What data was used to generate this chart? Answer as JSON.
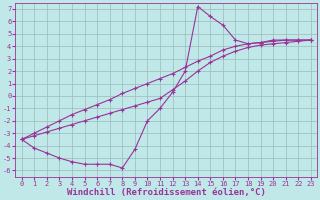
{
  "xlabel": "Windchill (Refroidissement éolien,°C)",
  "xlim": [
    -0.5,
    23.5
  ],
  "ylim": [
    -6.5,
    7.5
  ],
  "xticks": [
    0,
    1,
    2,
    3,
    4,
    5,
    6,
    7,
    8,
    9,
    10,
    11,
    12,
    13,
    14,
    15,
    16,
    17,
    18,
    19,
    20,
    21,
    22,
    23
  ],
  "yticks": [
    -6,
    -5,
    -4,
    -3,
    -2,
    -1,
    0,
    1,
    2,
    3,
    4,
    5,
    6,
    7
  ],
  "background_color": "#c0e8e8",
  "line_color": "#993399",
  "grid_color": "#99bbbb",
  "line1_x": [
    0,
    1,
    2,
    3,
    4,
    5,
    6,
    7,
    8,
    9,
    10,
    11,
    12,
    13,
    14,
    15,
    16,
    17,
    18,
    19,
    20,
    21,
    22,
    23
  ],
  "line1_y": [
    -3.5,
    -4.2,
    -4.6,
    -5.0,
    -5.3,
    -5.5,
    -5.5,
    -5.5,
    -5.8,
    -4.3,
    -2.0,
    -1.0,
    0.3,
    2.0,
    7.2,
    6.4,
    5.7,
    4.5,
    4.2,
    4.3,
    4.5,
    4.5,
    4.5,
    4.5
  ],
  "line2_x": [
    0,
    1,
    2,
    3,
    4,
    5,
    6,
    7,
    8,
    9,
    10,
    11,
    12,
    13,
    14,
    15,
    16,
    17,
    18,
    19,
    20,
    21,
    22,
    23
  ],
  "line2_y": [
    -3.5,
    -3.2,
    -2.9,
    -2.6,
    -2.3,
    -2.0,
    -1.7,
    -1.4,
    -1.1,
    -0.8,
    -0.5,
    -0.2,
    0.5,
    1.2,
    2.0,
    2.7,
    3.2,
    3.6,
    3.9,
    4.1,
    4.2,
    4.3,
    4.4,
    4.5
  ],
  "line3_x": [
    0,
    1,
    2,
    3,
    4,
    5,
    6,
    7,
    8,
    9,
    10,
    11,
    12,
    13,
    14,
    15,
    16,
    17,
    18,
    19,
    20,
    21,
    22,
    23
  ],
  "line3_y": [
    -3.5,
    -3.0,
    -2.5,
    -2.0,
    -1.5,
    -1.1,
    -0.7,
    -0.3,
    0.2,
    0.6,
    1.0,
    1.4,
    1.8,
    2.3,
    2.8,
    3.2,
    3.7,
    4.0,
    4.2,
    4.3,
    4.4,
    4.5,
    4.5,
    4.5
  ],
  "markersize": 2.5,
  "linewidth": 0.8,
  "tick_fontsize": 5.0,
  "xlabel_fontsize": 6.5
}
